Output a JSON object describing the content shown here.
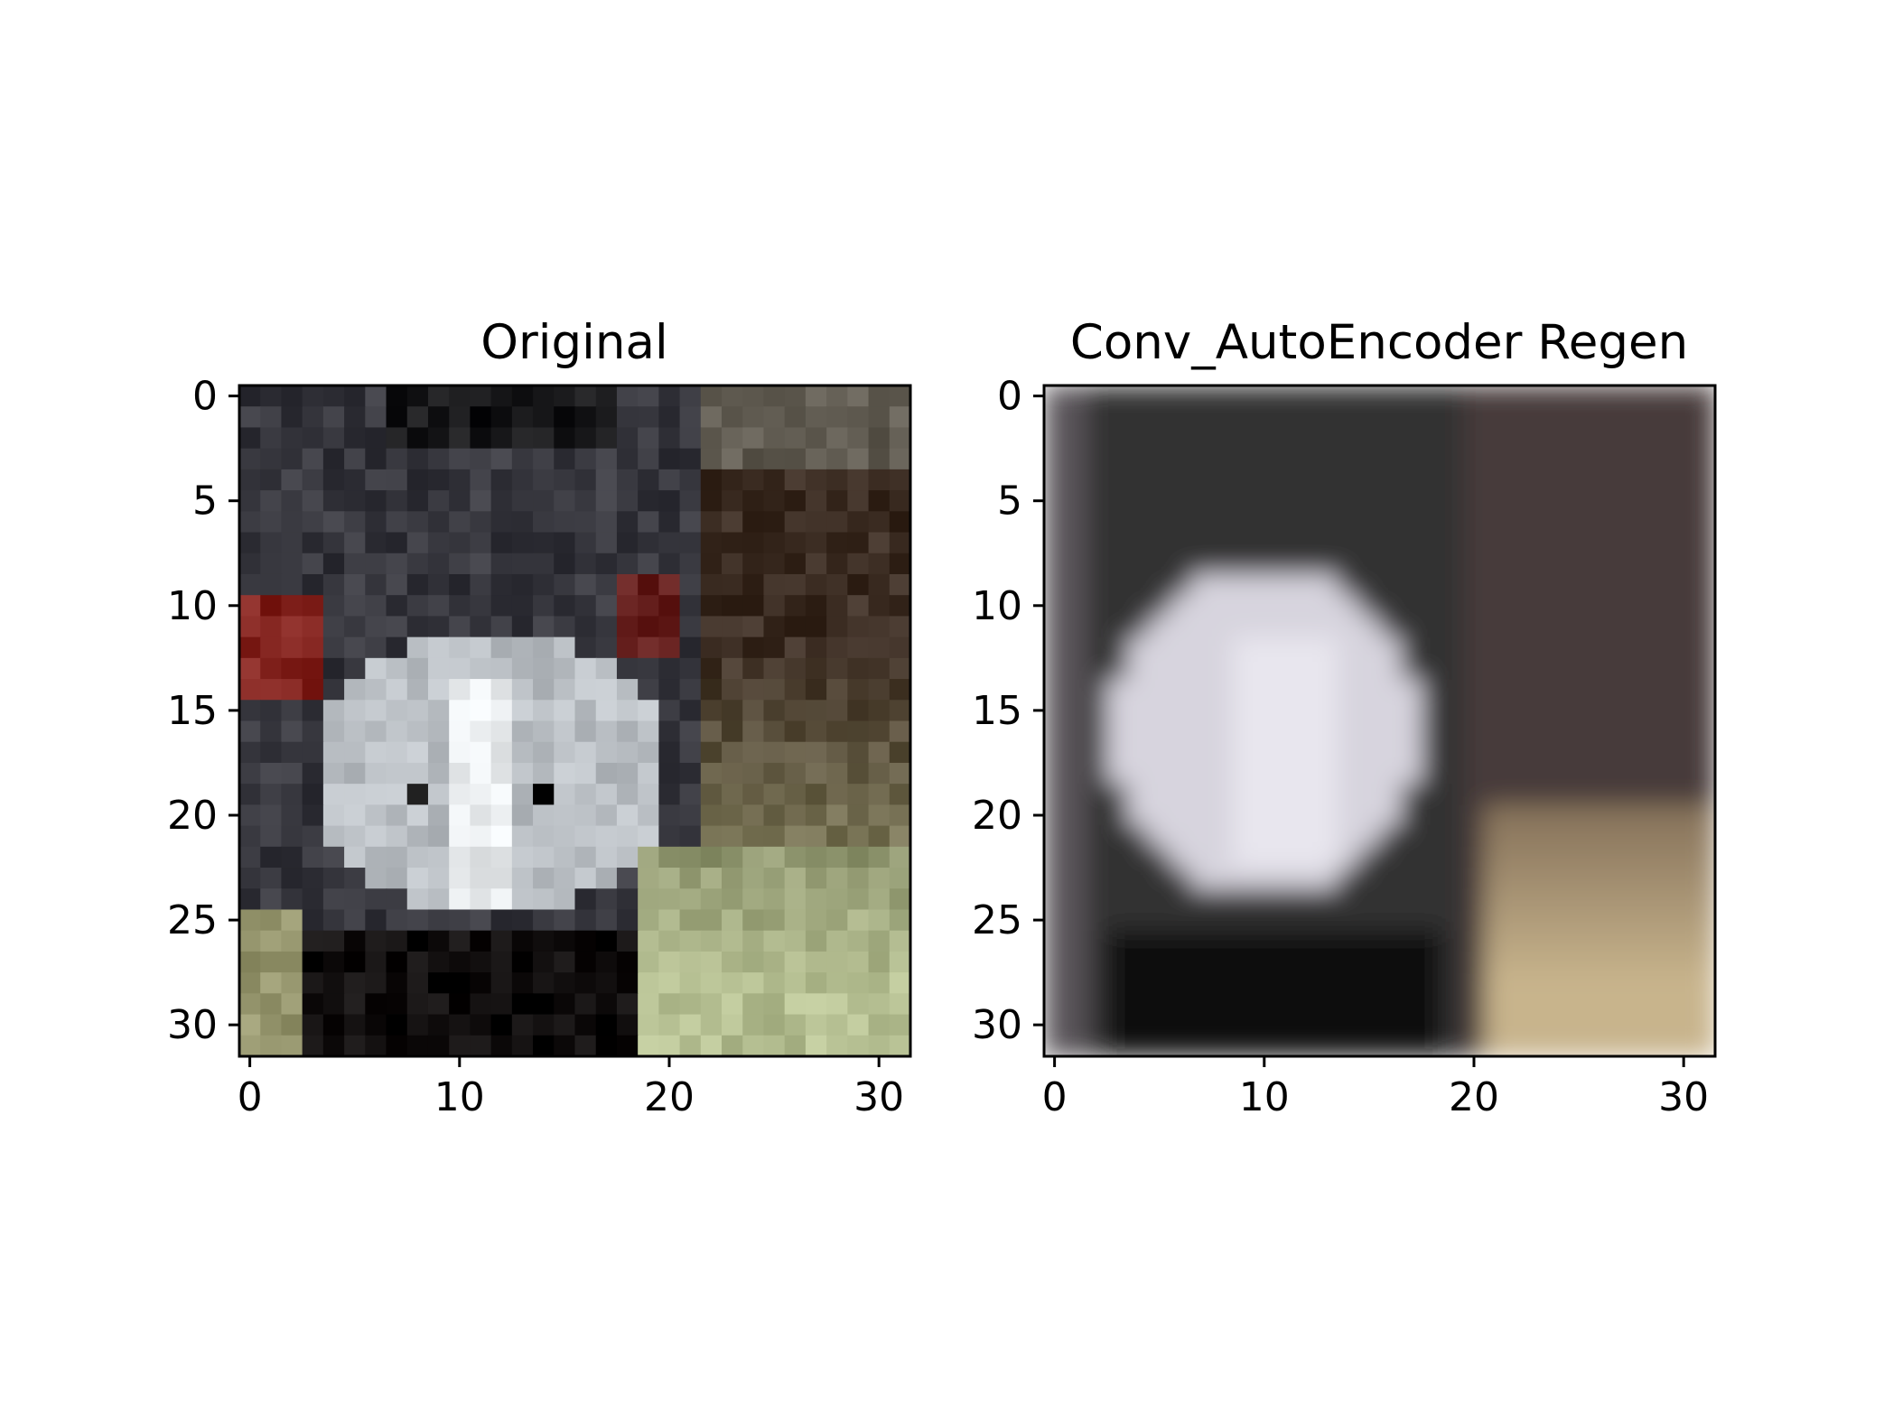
{
  "chart_data": [
    {
      "type": "heatmap",
      "title": "Original",
      "xlabel": "",
      "ylabel": "",
      "image_size": [
        32,
        32
      ],
      "xlim": [
        -0.5,
        31.5
      ],
      "ylim": [
        31.5,
        -0.5
      ],
      "xticks": [
        0,
        10,
        20,
        30
      ],
      "yticks": [
        0,
        5,
        10,
        15,
        20,
        25,
        30
      ],
      "grid": false,
      "content": "RGB pixel image of an emu face: dark gray feathers, white-gray bill region, red eyes, brown/green background at right"
    },
    {
      "type": "heatmap",
      "title": "Conv_AutoEncoder Regen",
      "xlabel": "",
      "ylabel": "",
      "image_size": [
        32,
        32
      ],
      "xlim": [
        -0.5,
        31.5
      ],
      "ylim": [
        31.5,
        -0.5
      ],
      "xticks": [
        0,
        10,
        20,
        30
      ],
      "yticks": [
        0,
        5,
        10,
        15,
        20,
        25,
        30
      ],
      "grid": false,
      "content": "Blurred reconstruction of the same image: dark surround, white-lavender center, tan lower right"
    }
  ]
}
